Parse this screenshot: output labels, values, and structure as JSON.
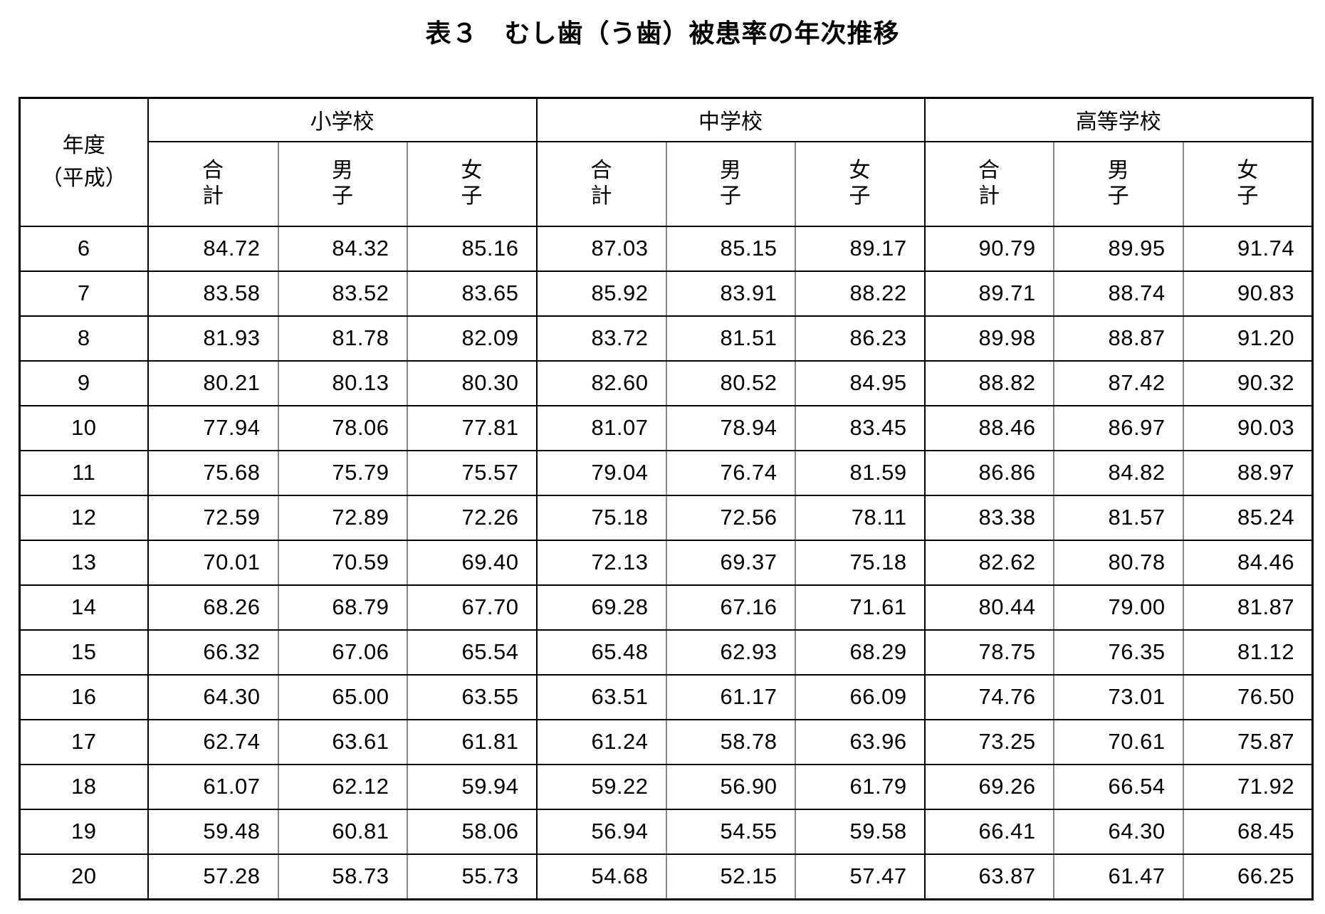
{
  "title": "表３　むし歯（う歯）被患率の年次推移",
  "header": {
    "year_label_1": "年度",
    "year_label_2": "（平成）",
    "groups": [
      "小学校",
      "中学校",
      "高等学校"
    ],
    "sub": [
      [
        "合",
        "計"
      ],
      [
        "男",
        "子"
      ],
      [
        "女",
        "子"
      ]
    ]
  },
  "rows": [
    {
      "year": "6",
      "values": [
        "84.72",
        "84.32",
        "85.16",
        "87.03",
        "85.15",
        "89.17",
        "90.79",
        "89.95",
        "91.74"
      ]
    },
    {
      "year": "7",
      "values": [
        "83.58",
        "83.52",
        "83.65",
        "85.92",
        "83.91",
        "88.22",
        "89.71",
        "88.74",
        "90.83"
      ]
    },
    {
      "year": "8",
      "values": [
        "81.93",
        "81.78",
        "82.09",
        "83.72",
        "81.51",
        "86.23",
        "89.98",
        "88.87",
        "91.20"
      ]
    },
    {
      "year": "9",
      "values": [
        "80.21",
        "80.13",
        "80.30",
        "82.60",
        "80.52",
        "84.95",
        "88.82",
        "87.42",
        "90.32"
      ]
    },
    {
      "year": "10",
      "values": [
        "77.94",
        "78.06",
        "77.81",
        "81.07",
        "78.94",
        "83.45",
        "88.46",
        "86.97",
        "90.03"
      ]
    },
    {
      "year": "11",
      "values": [
        "75.68",
        "75.79",
        "75.57",
        "79.04",
        "76.74",
        "81.59",
        "86.86",
        "84.82",
        "88.97"
      ]
    },
    {
      "year": "12",
      "values": [
        "72.59",
        "72.89",
        "72.26",
        "75.18",
        "72.56",
        "78.11",
        "83.38",
        "81.57",
        "85.24"
      ]
    },
    {
      "year": "13",
      "values": [
        "70.01",
        "70.59",
        "69.40",
        "72.13",
        "69.37",
        "75.18",
        "82.62",
        "80.78",
        "84.46"
      ]
    },
    {
      "year": "14",
      "values": [
        "68.26",
        "68.79",
        "67.70",
        "69.28",
        "67.16",
        "71.61",
        "80.44",
        "79.00",
        "81.87"
      ]
    },
    {
      "year": "15",
      "values": [
        "66.32",
        "67.06",
        "65.54",
        "65.48",
        "62.93",
        "68.29",
        "78.75",
        "76.35",
        "81.12"
      ]
    },
    {
      "year": "16",
      "values": [
        "64.30",
        "65.00",
        "63.55",
        "63.51",
        "61.17",
        "66.09",
        "74.76",
        "73.01",
        "76.50"
      ]
    },
    {
      "year": "17",
      "values": [
        "62.74",
        "63.61",
        "61.81",
        "61.24",
        "58.78",
        "63.96",
        "73.25",
        "70.61",
        "75.87"
      ]
    },
    {
      "year": "18",
      "values": [
        "61.07",
        "62.12",
        "59.94",
        "59.22",
        "56.90",
        "61.79",
        "69.26",
        "66.54",
        "71.92"
      ]
    },
    {
      "year": "19",
      "values": [
        "59.48",
        "60.81",
        "58.06",
        "56.94",
        "54.55",
        "59.58",
        "66.41",
        "64.30",
        "68.45"
      ]
    },
    {
      "year": "20",
      "values": [
        "57.28",
        "58.73",
        "55.73",
        "54.68",
        "52.15",
        "57.47",
        "63.87",
        "61.47",
        "66.25"
      ]
    }
  ]
}
